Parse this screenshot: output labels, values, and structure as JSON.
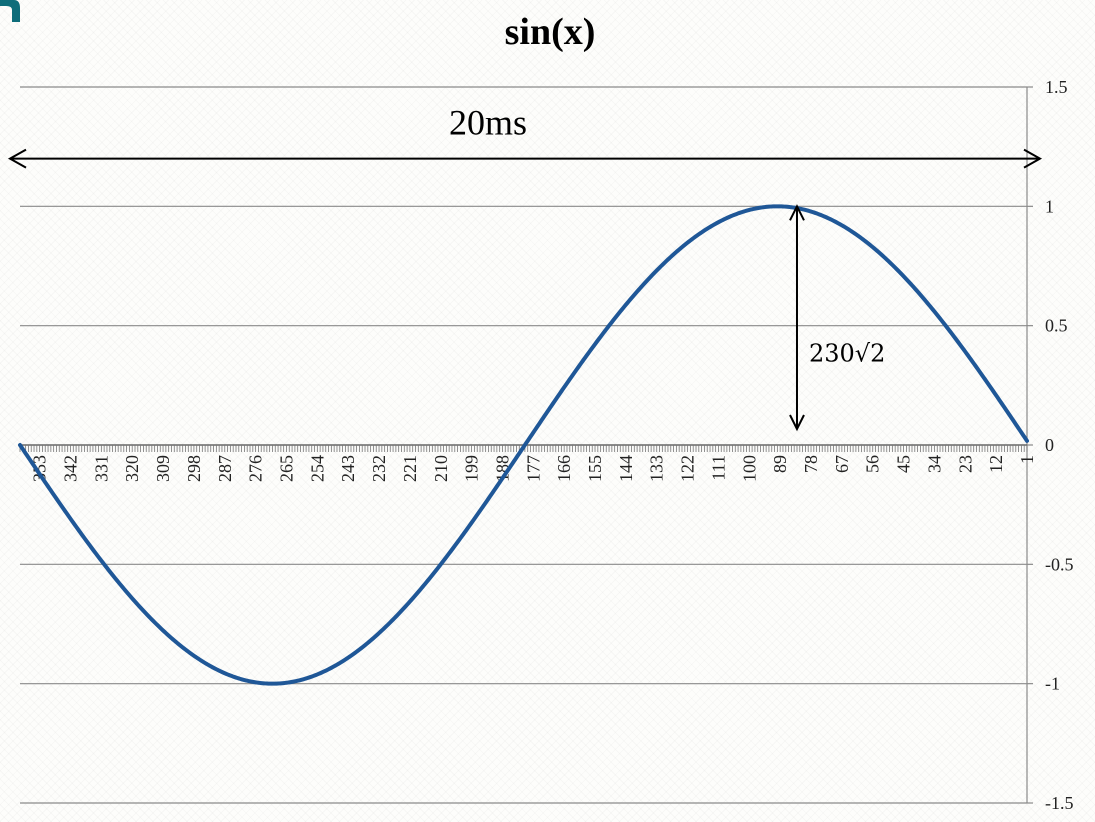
{
  "chart_data": {
    "type": "line",
    "title": "sin(x)",
    "x_ticks": [
      353,
      342,
      331,
      320,
      309,
      298,
      287,
      276,
      265,
      254,
      243,
      232,
      221,
      210,
      199,
      188,
      177,
      166,
      155,
      144,
      133,
      122,
      111,
      100,
      89,
      78,
      67,
      56,
      45,
      34,
      23,
      12,
      1
    ],
    "x_range": [
      1,
      360
    ],
    "x_reversed": true,
    "ylim": [
      -1.5,
      1.5
    ],
    "y_ticks": [
      1.5,
      1,
      0.5,
      0,
      -0.5,
      -1,
      -1.5
    ],
    "y_axis_side": "right",
    "grid": true,
    "series": [
      {
        "function": "sin(x)",
        "x_unit": "degrees",
        "x_start": 1,
        "x_end": 360,
        "color": "#1f5797"
      }
    ],
    "annotations": [
      {
        "text": "20ms",
        "kind": "double-arrow-horizontal",
        "y": 1.2
      },
      {
        "text": "230√2",
        "kind": "double-arrow-vertical",
        "x": 83,
        "y_from": 0,
        "y_to": 1
      }
    ]
  },
  "colors": {
    "series": "#1f5797",
    "grid": "#8a8a8a",
    "corner_accent": "#0e6d7a"
  }
}
